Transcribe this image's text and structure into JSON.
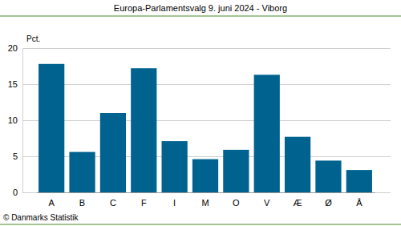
{
  "chart_data": {
    "type": "bar",
    "title": "Europa-Parlamentsvalg 9. juni 2024 - Viborg",
    "ylabel": "Pct.",
    "source": "© Danmarks Statistik",
    "categories": [
      "A",
      "B",
      "C",
      "F",
      "I",
      "M",
      "O",
      "V",
      "Æ",
      "Ø",
      "Å"
    ],
    "values": [
      17.8,
      5.6,
      11.0,
      17.2,
      7.1,
      4.6,
      5.9,
      16.3,
      7.7,
      4.4,
      3.1
    ],
    "color": "#00628f",
    "ylim": [
      0,
      20
    ],
    "yticks": [
      0,
      5,
      10,
      15,
      20
    ],
    "grid": true
  }
}
